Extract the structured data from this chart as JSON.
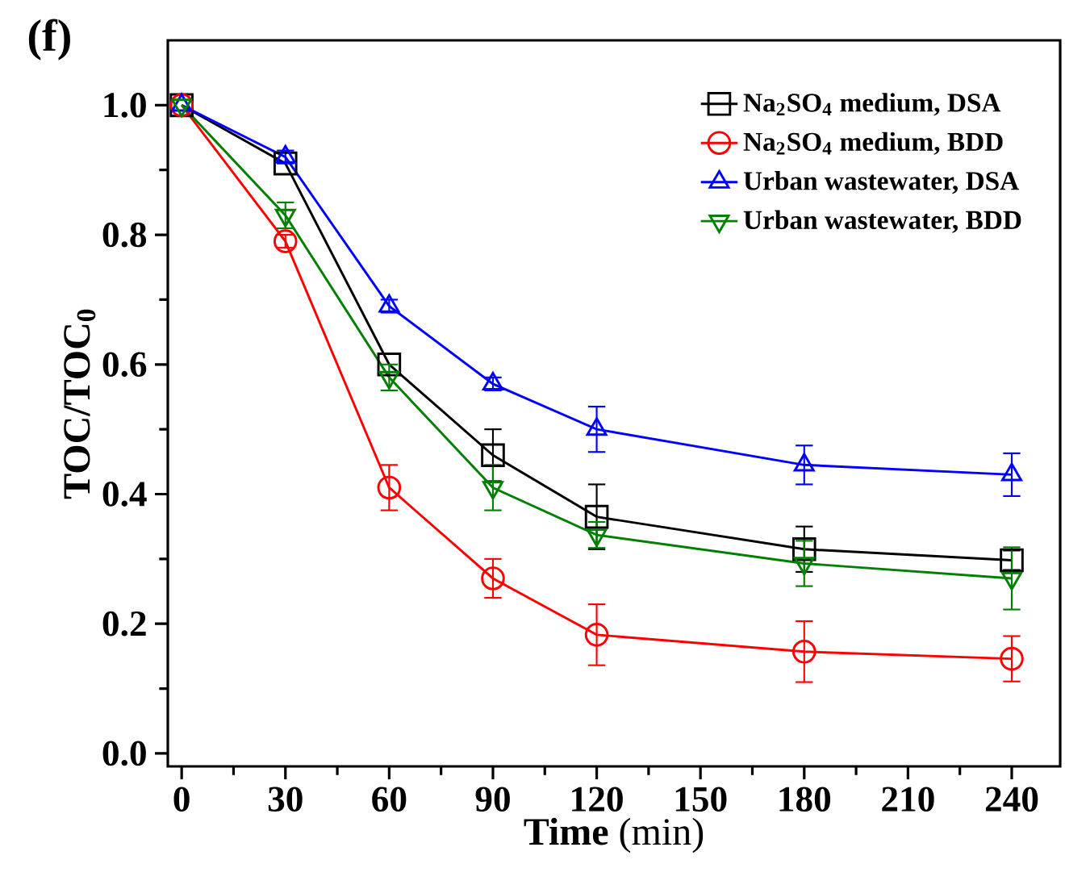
{
  "chart_data": {
    "type": "line",
    "xlabel": "**Time** (min)",
    "ylabel": "TOC/TOC$_{0}$",
    "annotations": [
      "(f)"
    ],
    "x": [
      0,
      30,
      60,
      90,
      120,
      180,
      240
    ],
    "xlim": [
      -4,
      254
    ],
    "xticks": [
      0,
      30,
      60,
      90,
      120,
      150,
      180,
      210,
      240
    ],
    "ylim": [
      -0.02,
      1.1
    ],
    "yticks": [
      {
        "value": 0,
        "label": "0.0"
      },
      {
        "value": 0.2,
        "label": "0.2"
      },
      {
        "value": 0.4,
        "label": "0.4"
      },
      {
        "value": 0.6,
        "label": "0.6"
      },
      {
        "value": 0.8,
        "label": "0.8"
      },
      {
        "value": 1,
        "label": "1.0"
      }
    ],
    "legend": "top right",
    "grid": false,
    "line_style": "solid",
    "series": [
      {
        "name": "Na$_{2}$SO$_{4}$ medium, DSA",
        "color": "#000000",
        "marker": "square",
        "values": [
          1.0,
          0.91,
          0.6,
          0.46,
          0.365,
          0.315,
          0.298
        ],
        "errors": [
          null,
          null,
          null,
          0.04,
          0.05,
          0.035,
          0.015
        ]
      },
      {
        "name": "Na$_{2}$SO$_{4}$ medium, BDD",
        "color": "#ff0000",
        "marker": "circle",
        "values": [
          1.0,
          0.79,
          0.41,
          0.27,
          0.183,
          0.157,
          0.146
        ],
        "errors": [
          null,
          0.01,
          0.035,
          0.03,
          0.047,
          0.047,
          0.035
        ]
      },
      {
        "name": "Urban wastewater, DSA",
        "color": "#0000ff",
        "marker": "triangle",
        "values": [
          1.0,
          0.92,
          0.69,
          0.57,
          0.5,
          0.445,
          0.43
        ],
        "errors": [
          null,
          0.01,
          0.01,
          0.01,
          0.035,
          0.03,
          0.033
        ]
      },
      {
        "name": "Urban wastewater, BDD",
        "color": "#008000",
        "marker": "triangle-down",
        "values": [
          1.0,
          0.83,
          0.58,
          0.41,
          0.337,
          0.293,
          0.27
        ],
        "errors": [
          null,
          0.02,
          0.02,
          0.035,
          0.02,
          0.035,
          0.048
        ]
      }
    ]
  }
}
